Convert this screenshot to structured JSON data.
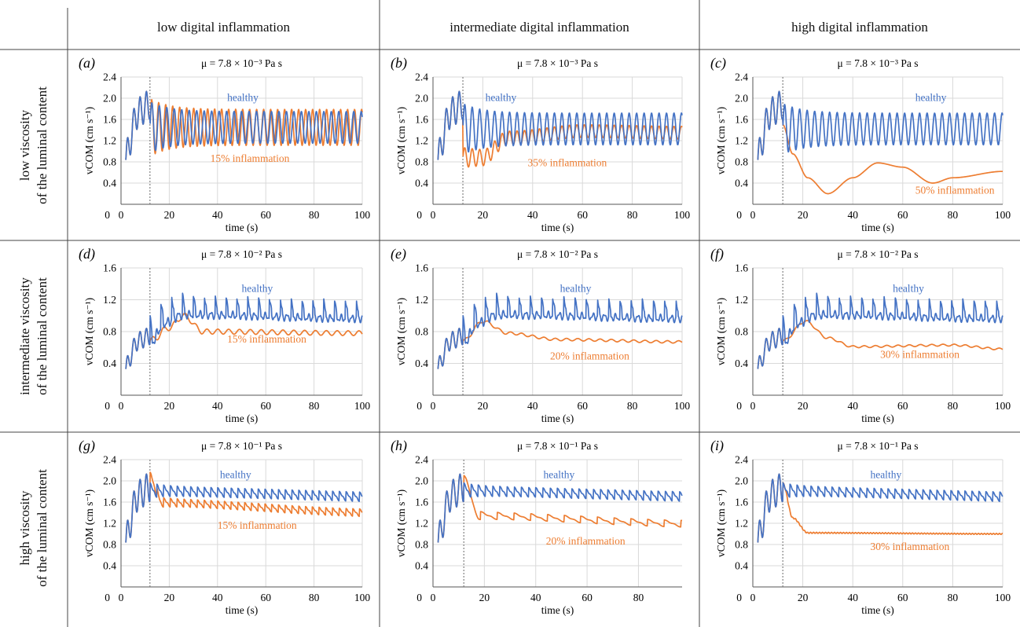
{
  "columns": [
    "low digital inflammation",
    "intermediate digital inflammation",
    "high digital inflammation"
  ],
  "rows": [
    {
      "line1": "low viscosity",
      "line2": "of the luminal content"
    },
    {
      "line1": "intermediate viscosity",
      "line2": "of the luminal content"
    },
    {
      "line1": "high viscosity",
      "line2": "of the luminal content"
    }
  ],
  "colors": {
    "healthy": "#4472c4",
    "inflamed": "#ed7d31",
    "grid": "#d9d9d9",
    "marker": "#777777"
  },
  "chart_data": [
    {
      "type": "line",
      "panel": "(a)",
      "title": "μ = 7.8 × 10⁻³ Pa s",
      "xlabel": "time (s)",
      "ylabel": "vCOM (cm s⁻¹)",
      "xlim": [
        0,
        100
      ],
      "ylim": [
        0,
        2.4
      ],
      "xticks": [
        0,
        20,
        40,
        60,
        80,
        100
      ],
      "yticks": [
        0,
        0.4,
        0.8,
        1.2,
        1.6,
        2.0,
        2.4
      ],
      "divider_x": 12,
      "series": [
        {
          "name": "healthy",
          "base": 1.45,
          "amp": 0.3,
          "period": 3.1,
          "trend": 0,
          "settle": 0,
          "decay": 8,
          "wave": [],
          "mode": "sin"
        },
        {
          "name": "15% inflammation",
          "base": 1.45,
          "amp": 0.34,
          "period": 2.9,
          "trend": 0,
          "settle": 0,
          "decay": 8,
          "wave": [],
          "mode": "sin"
        }
      ],
      "annotations": [
        {
          "text": "healthy",
          "x": 44,
          "y": 1.95,
          "series": 0
        },
        {
          "text": "15% inflammation",
          "x": 37,
          "y": 0.8,
          "series": 1
        }
      ]
    },
    {
      "type": "line",
      "panel": "(b)",
      "title": "μ = 7.8 × 10⁻³ Pa s",
      "xlabel": "time (s)",
      "ylabel": "vCOM (cm s⁻¹)",
      "xlim": [
        0,
        100
      ],
      "ylim": [
        0,
        2.4
      ],
      "xticks": [
        0,
        20,
        40,
        60,
        80,
        100
      ],
      "yticks": [
        0,
        0.4,
        0.8,
        1.2,
        1.6,
        2.0,
        2.4
      ],
      "divider_x": 12,
      "series": [
        {
          "name": "healthy",
          "base": 1.42,
          "amp": 0.3,
          "period": 3.0,
          "trend": 0,
          "settle": 0,
          "decay": 8,
          "wave": [],
          "mode": "sin"
        },
        {
          "name": "35% inflammation",
          "base": 1.35,
          "amp": 0.12,
          "period": 3.0,
          "trend": 0,
          "settle": 0,
          "decay": 10,
          "wave": [
            [
              20,
              0.88
            ],
            [
              30,
              1.25
            ],
            [
              60,
              1.38
            ],
            [
              100,
              1.35
            ]
          ],
          "mode": "sin"
        }
      ],
      "annotations": [
        {
          "text": "healthy",
          "x": 21,
          "y": 1.95,
          "series": 0
        },
        {
          "text": "35% inflammation",
          "x": 38,
          "y": 0.72,
          "series": 1
        }
      ]
    },
    {
      "type": "line",
      "panel": "(c)",
      "title": "μ = 7.8 × 10⁻³ Pa s",
      "xlabel": "time (s)",
      "ylabel": "vCOM (cm s⁻¹)",
      "xlim": [
        0,
        100
      ],
      "ylim": [
        0,
        2.4
      ],
      "xticks": [
        0,
        20,
        40,
        60,
        80,
        100
      ],
      "yticks": [
        0,
        0.4,
        0.8,
        1.2,
        1.6,
        2.0,
        2.4
      ],
      "divider_x": 12,
      "series": [
        {
          "name": "healthy",
          "base": 1.42,
          "amp": 0.3,
          "period": 3.0,
          "trend": 0,
          "settle": 0,
          "decay": 8,
          "wave": [],
          "mode": "sin"
        },
        {
          "name": "50% inflammation",
          "base": 0.6,
          "amp": 0.0,
          "period": 3.0,
          "trend": 0,
          "settle": 0,
          "decay": 10,
          "wave": [
            [
              12,
              1.5
            ],
            [
              16,
              0.95
            ],
            [
              22,
              0.5
            ],
            [
              30,
              0.2
            ],
            [
              40,
              0.5
            ],
            [
              50,
              0.78
            ],
            [
              60,
              0.7
            ],
            [
              72,
              0.4
            ],
            [
              80,
              0.5
            ],
            [
              100,
              0.62
            ]
          ],
          "mode": "sin"
        }
      ],
      "annotations": [
        {
          "text": "healthy",
          "x": 65,
          "y": 1.95,
          "series": 0
        },
        {
          "text": "50% inflammation",
          "x": 65,
          "y": 0.2,
          "series": 1
        }
      ]
    },
    {
      "type": "line",
      "panel": "(d)",
      "title": "μ = 7.8 × 10⁻² Pa s",
      "xlabel": "time (s)",
      "ylabel": "vCOM (cm s⁻¹)",
      "xlim": [
        0,
        100
      ],
      "ylim": [
        0,
        1.6
      ],
      "xticks": [
        0,
        20,
        40,
        60,
        80,
        100
      ],
      "yticks": [
        0,
        0.4,
        0.8,
        1.2,
        1.6
      ],
      "divider_x": 12,
      "series": [
        {
          "name": "healthy",
          "base": 1.0,
          "amp": 0.12,
          "period": 4.5,
          "trend": 0,
          "settle": 0,
          "decay": 10,
          "wave": [
            [
              12,
              0.7
            ],
            [
              18,
              0.95
            ],
            [
              25,
              1.05
            ],
            [
              100,
              1.0
            ]
          ],
          "mode": "spike"
        },
        {
          "name": "15% inflammation",
          "base": 0.78,
          "amp": 0.03,
          "period": 4.5,
          "trend": 0,
          "settle": 0,
          "decay": 10,
          "wave": [
            [
              12,
              0.68
            ],
            [
              20,
              0.85
            ],
            [
              26,
              1.0
            ],
            [
              34,
              0.8
            ],
            [
              100,
              0.78
            ]
          ],
          "mode": "sin"
        }
      ],
      "annotations": [
        {
          "text": "healthy",
          "x": 50,
          "y": 1.3,
          "series": 0
        },
        {
          "text": "15% inflammation",
          "x": 44,
          "y": 0.66,
          "series": 1
        }
      ]
    },
    {
      "type": "line",
      "panel": "(e)",
      "title": "μ = 7.8 × 10⁻² Pa s",
      "xlabel": "time (s)",
      "ylabel": "vCOM (cm s⁻¹)",
      "xlim": [
        0,
        100
      ],
      "ylim": [
        0,
        1.6
      ],
      "xticks": [
        0,
        20,
        40,
        60,
        80,
        100
      ],
      "yticks": [
        0,
        0.4,
        0.8,
        1.2,
        1.6
      ],
      "divider_x": 12,
      "series": [
        {
          "name": "healthy",
          "base": 1.0,
          "amp": 0.12,
          "period": 4.5,
          "trend": 0,
          "settle": 0,
          "decay": 10,
          "wave": [
            [
              12,
              0.7
            ],
            [
              18,
              0.95
            ],
            [
              25,
              1.05
            ],
            [
              100,
              1.0
            ]
          ],
          "mode": "spike"
        },
        {
          "name": "20% inflammation",
          "base": 0.68,
          "amp": 0.015,
          "period": 4.5,
          "trend": 0,
          "settle": 0,
          "decay": 10,
          "wave": [
            [
              12,
              0.68
            ],
            [
              20,
              0.93
            ],
            [
              30,
              0.78
            ],
            [
              50,
              0.7
            ],
            [
              100,
              0.67
            ]
          ],
          "mode": "sin"
        }
      ],
      "annotations": [
        {
          "text": "healthy",
          "x": 51,
          "y": 1.3,
          "series": 0
        },
        {
          "text": "20% inflammation",
          "x": 47,
          "y": 0.45,
          "series": 1
        }
      ]
    },
    {
      "type": "line",
      "panel": "(f)",
      "title": "μ = 7.8 × 10⁻² Pa s",
      "xlabel": "time (s)",
      "ylabel": "vCOM (cm s⁻¹)",
      "xlim": [
        0,
        100
      ],
      "ylim": [
        0,
        1.6
      ],
      "xticks": [
        0,
        20,
        40,
        60,
        80,
        100
      ],
      "yticks": [
        0,
        0.4,
        0.8,
        1.2,
        1.6
      ],
      "divider_x": 12,
      "series": [
        {
          "name": "healthy",
          "base": 1.0,
          "amp": 0.12,
          "period": 4.5,
          "trend": 0,
          "settle": 0,
          "decay": 10,
          "wave": [
            [
              12,
              0.7
            ],
            [
              18,
              0.95
            ],
            [
              25,
              1.05
            ],
            [
              100,
              1.0
            ]
          ],
          "mode": "spike"
        },
        {
          "name": "30% inflammation",
          "base": 0.6,
          "amp": 0.012,
          "period": 4.5,
          "trend": 0,
          "settle": 0,
          "decay": 10,
          "wave": [
            [
              12,
              0.68
            ],
            [
              21,
              0.93
            ],
            [
              30,
              0.72
            ],
            [
              40,
              0.61
            ],
            [
              80,
              0.63
            ],
            [
              100,
              0.58
            ]
          ],
          "mode": "sin"
        }
      ],
      "annotations": [
        {
          "text": "healthy",
          "x": 56,
          "y": 1.3,
          "series": 0
        },
        {
          "text": "30% inflammation",
          "x": 51,
          "y": 0.47,
          "series": 1
        }
      ]
    },
    {
      "type": "line",
      "panel": "(g)",
      "title": "μ = 7.8 × 10⁻¹ Pa s",
      "xlabel": "time (s)",
      "ylabel": "vCOM (cm s⁻¹)",
      "xlim": [
        0,
        100
      ],
      "ylim": [
        0,
        2.4
      ],
      "xticks": [
        0,
        20,
        40,
        60,
        80,
        100
      ],
      "yticks": [
        0,
        0.4,
        0.8,
        1.2,
        1.6,
        2.0,
        2.4
      ],
      "divider_x": 12,
      "series": [
        {
          "name": "healthy",
          "base": 1.82,
          "amp": 0.1,
          "period": 2.8,
          "trend": -0.12,
          "settle": 0,
          "decay": 6,
          "wave": [],
          "mode": "saw"
        },
        {
          "name": "15% inflammation",
          "base": 1.55,
          "amp": 0.08,
          "period": 2.8,
          "trend": -0.1,
          "settle": 0,
          "decay": 6,
          "wave": [
            [
              12,
              2.05
            ],
            [
              17,
              1.6
            ],
            [
              100,
              1.5
            ]
          ],
          "mode": "saw"
        }
      ],
      "annotations": [
        {
          "text": "healthy",
          "x": 41,
          "y": 2.05,
          "series": 0
        },
        {
          "text": "15% inflammation",
          "x": 40,
          "y": 1.1,
          "series": 1
        }
      ]
    },
    {
      "type": "line",
      "panel": "(h)",
      "title": "μ = 7.8 × 10⁻¹ Pa s",
      "xlabel": "time (s)",
      "ylabel": "vCOM (cm s⁻¹)",
      "xlim": [
        0,
        97
      ],
      "ylim": [
        0,
        2.4
      ],
      "xticks": [
        0,
        20,
        40,
        60,
        80
      ],
      "yticks": [
        0,
        0.4,
        0.8,
        1.2,
        1.6,
        2.0,
        2.4
      ],
      "divider_x": 12,
      "series": [
        {
          "name": "healthy",
          "base": 1.82,
          "amp": 0.1,
          "period": 2.8,
          "trend": -0.12,
          "settle": 0,
          "decay": 6,
          "wave": [],
          "mode": "saw"
        },
        {
          "name": "20% inflammation",
          "base": 1.3,
          "amp": 0.07,
          "period": 6.5,
          "trend": -0.06,
          "settle": 0,
          "decay": 6,
          "wave": [
            [
              12,
              2.0
            ],
            [
              18,
              1.35
            ],
            [
              100,
              1.25
            ]
          ],
          "mode": "saw"
        }
      ],
      "annotations": [
        {
          "text": "healthy",
          "x": 43,
          "y": 2.05,
          "series": 0
        },
        {
          "text": "20% inflammation",
          "x": 44,
          "y": 0.8,
          "series": 1
        }
      ]
    },
    {
      "type": "line",
      "panel": "(i)",
      "title": "μ = 7.8 × 10⁻¹ Pa s",
      "xlabel": "time (s)",
      "ylabel": "vCOM (cm s⁻¹)",
      "xlim": [
        0,
        100
      ],
      "ylim": [
        0,
        2.4
      ],
      "xticks": [
        0,
        20,
        40,
        60,
        80,
        100
      ],
      "yticks": [
        0,
        0.4,
        0.8,
        1.2,
        1.6,
        2.0,
        2.4
      ],
      "divider_x": 12,
      "series": [
        {
          "name": "healthy",
          "base": 1.82,
          "amp": 0.1,
          "period": 2.8,
          "trend": -0.12,
          "settle": 0,
          "decay": 6,
          "wave": [],
          "mode": "saw"
        },
        {
          "name": "30% inflammation",
          "base": 1.0,
          "amp": 0.01,
          "period": 1.2,
          "trend": 0,
          "settle": 0,
          "decay": 6,
          "wave": [
            [
              12,
              1.95
            ],
            [
              16,
              1.3
            ],
            [
              22,
              1.02
            ],
            [
              100,
              1.0
            ]
          ],
          "mode": "sin"
        }
      ],
      "annotations": [
        {
          "text": "healthy",
          "x": 47,
          "y": 2.05,
          "series": 0
        },
        {
          "text": "30% inflammation",
          "x": 47,
          "y": 0.7,
          "series": 1
        }
      ]
    }
  ]
}
